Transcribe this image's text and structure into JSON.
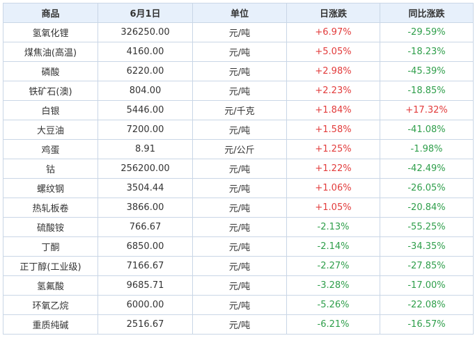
{
  "headers": [
    "商品",
    "6月1日",
    "单位",
    "日涨跌",
    "同比涨跌"
  ],
  "rows": [
    {
      "name": "氢氧化锂",
      "price": "326250.00",
      "unit": "元/吨",
      "daily": "+6.97%",
      "yoy": "-29.59%"
    },
    {
      "name": "煤焦油(高温)",
      "price": "4160.00",
      "unit": "元/吨",
      "daily": "+5.05%",
      "yoy": "-18.23%"
    },
    {
      "name": "磷酸",
      "price": "6220.00",
      "unit": "元/吨",
      "daily": "+2.98%",
      "yoy": "-45.39%"
    },
    {
      "name": "铁矿石(澳)",
      "price": "804.00",
      "unit": "元/吨",
      "daily": "+2.23%",
      "yoy": "-18.85%"
    },
    {
      "name": "白银",
      "price": "5446.00",
      "unit": "元/千克",
      "daily": "+1.84%",
      "yoy": "+17.32%"
    },
    {
      "name": "大豆油",
      "price": "7200.00",
      "unit": "元/吨",
      "daily": "+1.58%",
      "yoy": "-41.08%"
    },
    {
      "name": "鸡蛋",
      "price": "8.91",
      "unit": "元/公斤",
      "daily": "+1.25%",
      "yoy": "-1.98%"
    },
    {
      "name": "钴",
      "price": "256200.00",
      "unit": "元/吨",
      "daily": "+1.22%",
      "yoy": "-42.49%"
    },
    {
      "name": "螺纹钢",
      "price": "3504.44",
      "unit": "元/吨",
      "daily": "+1.06%",
      "yoy": "-26.05%"
    },
    {
      "name": "热轧板卷",
      "price": "3866.00",
      "unit": "元/吨",
      "daily": "+1.05%",
      "yoy": "-20.84%"
    },
    {
      "name": "硫酸铵",
      "price": "766.67",
      "unit": "元/吨",
      "daily": "-2.13%",
      "yoy": "-55.25%"
    },
    {
      "name": "丁酮",
      "price": "6850.00",
      "unit": "元/吨",
      "daily": "-2.14%",
      "yoy": "-34.35%"
    },
    {
      "name": "正丁醇(工业级)",
      "price": "7166.67",
      "unit": "元/吨",
      "daily": "-2.27%",
      "yoy": "-27.85%"
    },
    {
      "name": "氢氟酸",
      "price": "9685.71",
      "unit": "元/吨",
      "daily": "-3.28%",
      "yoy": "-17.00%"
    },
    {
      "name": "环氧乙烷",
      "price": "6000.00",
      "unit": "元/吨",
      "daily": "-5.26%",
      "yoy": "-22.08%"
    },
    {
      "name": "重质纯碱",
      "price": "2516.67",
      "unit": "元/吨",
      "daily": "-6.21%",
      "yoy": "-16.57%"
    }
  ],
  "colors": {
    "up": "#e23b3b",
    "down": "#2e9e4a",
    "header_bg": "#e7f0fb",
    "border": "#c9d6e6"
  }
}
